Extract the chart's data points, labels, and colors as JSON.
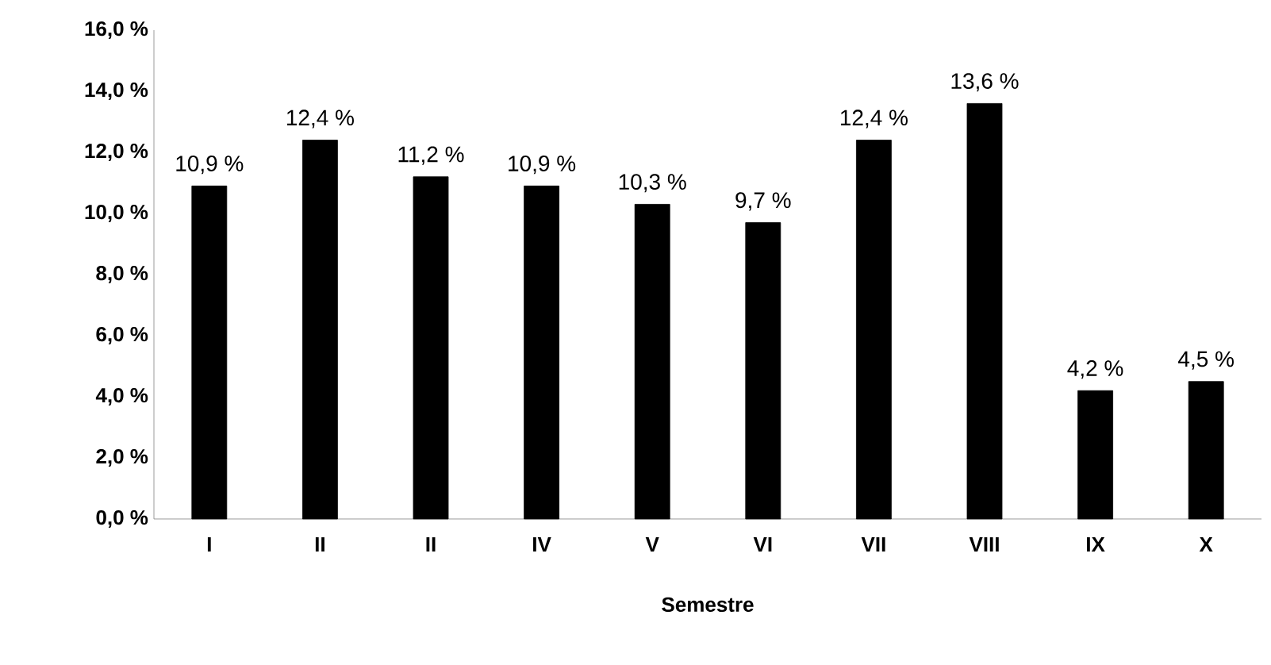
{
  "chart_data": {
    "type": "bar",
    "xlabel": "Semestre",
    "categories": [
      "I",
      "II",
      "II",
      "IV",
      "V",
      "VI",
      "VII",
      "VIII",
      "IX",
      "X"
    ],
    "values": [
      10.9,
      12.4,
      11.2,
      10.9,
      10.3,
      9.7,
      12.4,
      13.6,
      4.2,
      4.5
    ],
    "value_labels": [
      "10,9 %",
      "12,4 %",
      "11,2 %",
      "10,9 %",
      "10,3 %",
      "9,7 %",
      "12,4 %",
      "13,6 %",
      "4,2 %",
      "4,5 %"
    ],
    "color": "#000000",
    "ylim": [
      0,
      16
    ],
    "yticks": [
      {
        "value": 0,
        "label": "0,0 %"
      },
      {
        "value": 2,
        "label": "2,0 %"
      },
      {
        "value": 4,
        "label": "4,0 %"
      },
      {
        "value": 6,
        "label": "6,0 %"
      },
      {
        "value": 8,
        "label": "8,0 %"
      },
      {
        "value": 10,
        "label": "10,0 %"
      },
      {
        "value": 12,
        "label": "12,0 %"
      },
      {
        "value": 14,
        "label": "14,0 %"
      },
      {
        "value": 16,
        "label": "16,0 %"
      }
    ]
  }
}
